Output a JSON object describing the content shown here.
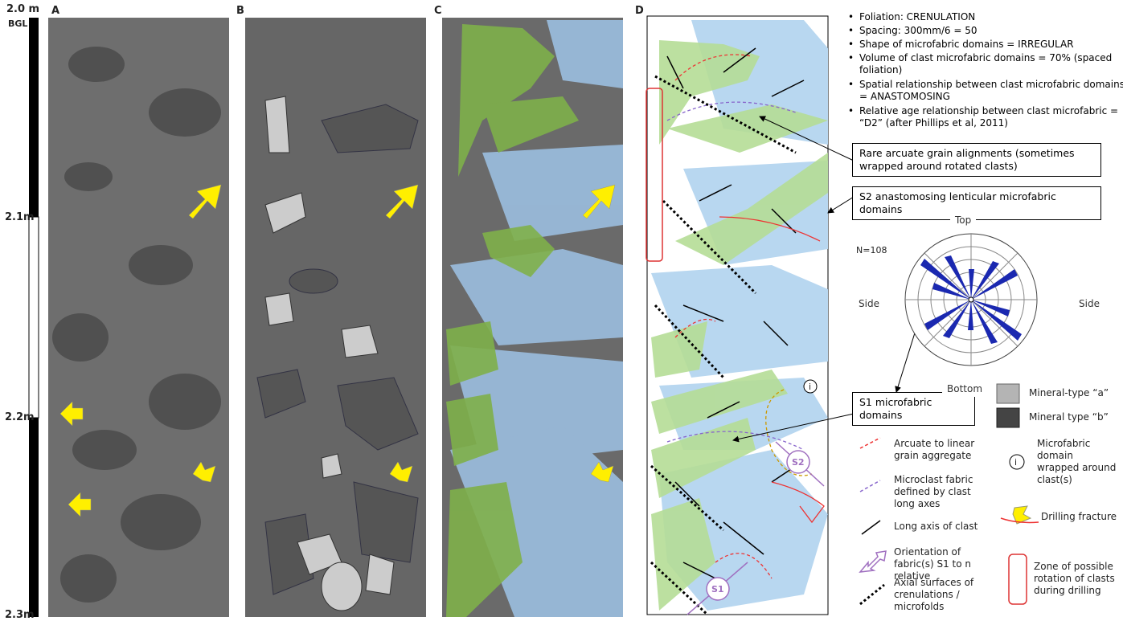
{
  "depth_scale": {
    "top": "2.0 m",
    "top_ref": "BGL",
    "ticks": [
      "2.1m",
      "2.2m",
      "2.3m"
    ]
  },
  "panels": [
    "A",
    "B",
    "C",
    "D"
  ],
  "notes": [
    "Foliation: CRENULATION",
    "Spacing: 300mm/6 = 50",
    "Shape of microfabric domains = IRREGULAR",
    "Volume of clast microfabric domains = 70% (spaced foliation)",
    "Spatial relationship between clast microfabric domains = ANASTOMOSING",
    "Relative age relationship between clast microfabric = “D2” (after Phillips et al, 2011)"
  ],
  "callouts": [
    "Rare arcuate grain alignments (sometimes wrapped around rotated clasts)",
    "S2 anastomosing lenticular microfabric domains",
    "S1 microfabric domains"
  ],
  "rose": {
    "n": "N=108",
    "top": "Top",
    "left": "Side",
    "right": "Side",
    "bottom": "Bottom"
  },
  "markers": {
    "s1": "S1",
    "s2": "S2",
    "wrap": "i"
  },
  "legend": [
    "Mineral-type “a”",
    "Mineral type “b”",
    "Arcuate to linear grain aggregate",
    "Microfabric domain wrapped around clast(s)",
    "Microclast fabric defined by clast long axes",
    "Drilling fracture",
    "Long axis of clast",
    "Orientation of fabric(s) S1 to n relative",
    "Zone of possible rotation of clasts during drilling",
    "Axial surfaces of crenulations / microfolds"
  ]
}
